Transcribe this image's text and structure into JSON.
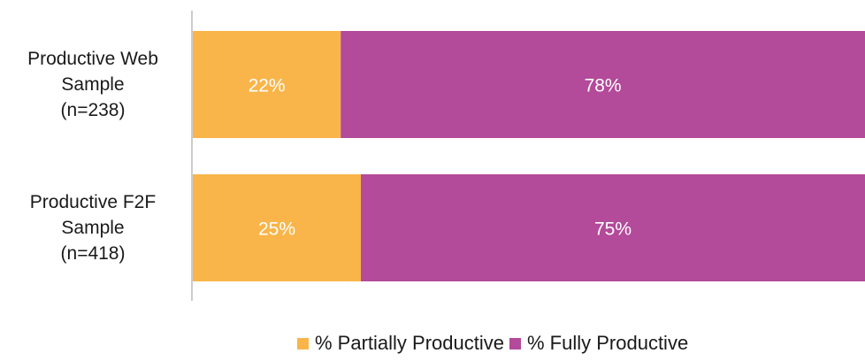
{
  "chart_data": {
    "type": "bar",
    "orientation": "horizontal",
    "stacked": true,
    "categories": [
      [
        "Productive Web",
        "Sample",
        "(n=238)"
      ],
      [
        "Productive F2F",
        "Sample",
        "(n=418)"
      ]
    ],
    "series": [
      {
        "name": "% Partially Productive",
        "color": "#F9B549",
        "values": [
          22,
          25
        ],
        "labels": [
          "22%",
          "25%"
        ]
      },
      {
        "name": "% Fully Productive",
        "color": "#B34A9A",
        "values": [
          78,
          75
        ],
        "labels": [
          "78%",
          "75%"
        ]
      }
    ],
    "xlim": [
      0,
      100
    ],
    "grid": false,
    "legend": "bottom"
  }
}
